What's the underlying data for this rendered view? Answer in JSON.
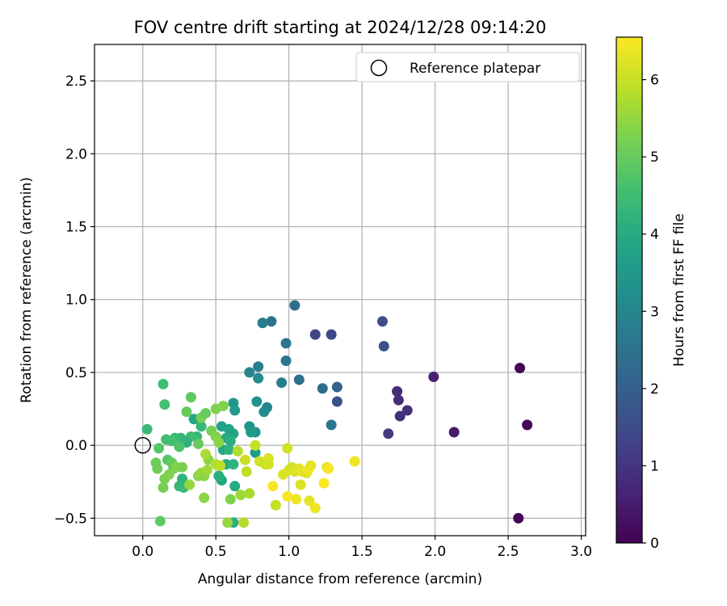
{
  "chart_data": {
    "type": "scatter",
    "title": "FOV centre drift starting at 2024/12/28 09:14:20",
    "xlabel": "Angular distance from reference (arcmin)",
    "ylabel": "Rotation from reference (arcmin)",
    "xlim": [
      -0.33,
      3.03
    ],
    "ylim": [
      -0.62,
      2.75
    ],
    "xticks": [
      0.0,
      0.5,
      1.0,
      1.5,
      2.0,
      2.5,
      3.0
    ],
    "xtick_labels": [
      "0.0",
      "0.5",
      "1.0",
      "1.5",
      "2.0",
      "2.5",
      "3.0"
    ],
    "yticks": [
      -0.5,
      0.0,
      0.5,
      1.0,
      1.5,
      2.0,
      2.5
    ],
    "ytick_labels": [
      "−0.5",
      "0.0",
      "0.5",
      "1.0",
      "1.5",
      "2.0",
      "2.5"
    ],
    "grid": true,
    "legend": {
      "position": "upper-right",
      "entries": [
        "Reference platepar"
      ]
    },
    "reference_point": {
      "label": "Reference platepar",
      "x": 0.0,
      "y": 0.0
    },
    "colorbar": {
      "label": "Hours from first FF file",
      "min": 0,
      "max": 6.55,
      "ticks": [
        0,
        1,
        2,
        3,
        4,
        5,
        6
      ],
      "tick_labels": [
        "0",
        "1",
        "2",
        "3",
        "4",
        "5",
        "6"
      ],
      "colormap": "viridis"
    },
    "points": [
      {
        "x": 2.58,
        "y": 0.53,
        "h": 0.1
      },
      {
        "x": 2.63,
        "y": 0.14,
        "h": 0.1
      },
      {
        "x": 2.57,
        "y": -0.5,
        "h": 0.1
      },
      {
        "x": 2.13,
        "y": 0.09,
        "h": 0.5
      },
      {
        "x": 1.99,
        "y": 0.47,
        "h": 0.6
      },
      {
        "x": 1.74,
        "y": 0.37,
        "h": 0.8
      },
      {
        "x": 1.75,
        "y": 0.31,
        "h": 0.8
      },
      {
        "x": 1.81,
        "y": 0.24,
        "h": 0.9
      },
      {
        "x": 1.76,
        "y": 0.2,
        "h": 0.9
      },
      {
        "x": 1.68,
        "y": 0.08,
        "h": 1.1
      },
      {
        "x": 1.64,
        "y": 0.85,
        "h": 1.5
      },
      {
        "x": 1.65,
        "y": 0.68,
        "h": 1.6
      },
      {
        "x": 1.18,
        "y": 0.76,
        "h": 1.3
      },
      {
        "x": 1.29,
        "y": 0.76,
        "h": 1.4
      },
      {
        "x": 1.33,
        "y": 0.3,
        "h": 1.6
      },
      {
        "x": 1.33,
        "y": 0.4,
        "h": 2.1
      },
      {
        "x": 1.23,
        "y": 0.39,
        "h": 2.3
      },
      {
        "x": 1.29,
        "y": 0.14,
        "h": 2.6
      },
      {
        "x": 1.04,
        "y": 0.96,
        "h": 2.3
      },
      {
        "x": 0.88,
        "y": 0.85,
        "h": 2.5
      },
      {
        "x": 0.82,
        "y": 0.84,
        "h": 2.7
      },
      {
        "x": 0.98,
        "y": 0.7,
        "h": 2.6
      },
      {
        "x": 0.98,
        "y": 0.58,
        "h": 2.6
      },
      {
        "x": 1.07,
        "y": 0.45,
        "h": 2.4
      },
      {
        "x": 0.95,
        "y": 0.43,
        "h": 2.7
      },
      {
        "x": 0.79,
        "y": 0.54,
        "h": 2.8
      },
      {
        "x": 0.73,
        "y": 0.5,
        "h": 3.0
      },
      {
        "x": 0.79,
        "y": 0.46,
        "h": 3.1
      },
      {
        "x": 0.85,
        "y": 0.26,
        "h": 2.9
      },
      {
        "x": 0.83,
        "y": 0.23,
        "h": 3.1
      },
      {
        "x": 0.78,
        "y": 0.3,
        "h": 3.3
      },
      {
        "x": 0.62,
        "y": 0.29,
        "h": 3.5
      },
      {
        "x": 0.63,
        "y": 0.24,
        "h": 3.6
      },
      {
        "x": 0.73,
        "y": 0.13,
        "h": 3.3
      },
      {
        "x": 0.77,
        "y": 0.09,
        "h": 3.4
      },
      {
        "x": 0.74,
        "y": 0.09,
        "h": 3.6
      },
      {
        "x": 0.77,
        "y": -0.05,
        "h": 3.6
      },
      {
        "x": 0.54,
        "y": 0.13,
        "h": 3.7
      },
      {
        "x": 0.59,
        "y": 0.11,
        "h": 3.9
      },
      {
        "x": 0.62,
        "y": 0.08,
        "h": 3.8
      },
      {
        "x": 0.57,
        "y": 0.05,
        "h": 4.0
      },
      {
        "x": 0.6,
        "y": 0.03,
        "h": 4.1
      },
      {
        "x": 0.55,
        "y": -0.03,
        "h": 3.9
      },
      {
        "x": 0.59,
        "y": -0.03,
        "h": 4.2
      },
      {
        "x": 0.57,
        "y": -0.13,
        "h": 4.0
      },
      {
        "x": 0.62,
        "y": -0.13,
        "h": 4.2
      },
      {
        "x": 0.63,
        "y": -0.28,
        "h": 4.0
      },
      {
        "x": 0.54,
        "y": -0.24,
        "h": 3.9
      },
      {
        "x": 0.52,
        "y": -0.21,
        "h": 4.1
      },
      {
        "x": 0.62,
        "y": -0.53,
        "h": 4.1
      },
      {
        "x": 0.35,
        "y": 0.18,
        "h": 3.9
      },
      {
        "x": 0.4,
        "y": 0.13,
        "h": 4.3
      },
      {
        "x": 0.37,
        "y": 0.06,
        "h": 4.4
      },
      {
        "x": 0.33,
        "y": 0.06,
        "h": 4.5
      },
      {
        "x": 0.3,
        "y": 0.02,
        "h": 4.2
      },
      {
        "x": 0.26,
        "y": 0.05,
        "h": 4.3
      },
      {
        "x": 0.22,
        "y": 0.05,
        "h": 4.4
      },
      {
        "x": 0.2,
        "y": 0.03,
        "h": 4.6
      },
      {
        "x": 0.25,
        "y": -0.01,
        "h": 4.7
      },
      {
        "x": 0.27,
        "y": -0.23,
        "h": 4.2
      },
      {
        "x": 0.25,
        "y": -0.28,
        "h": 4.3
      },
      {
        "x": 0.28,
        "y": -0.29,
        "h": 4.4
      },
      {
        "x": 0.16,
        "y": 0.04,
        "h": 4.5
      },
      {
        "x": 0.11,
        "y": -0.02,
        "h": 4.8
      },
      {
        "x": 0.03,
        "y": 0.11,
        "h": 4.4
      },
      {
        "x": 0.14,
        "y": 0.42,
        "h": 4.5
      },
      {
        "x": 0.15,
        "y": 0.28,
        "h": 4.6
      },
      {
        "x": 0.33,
        "y": 0.33,
        "h": 4.9
      },
      {
        "x": 0.3,
        "y": 0.23,
        "h": 5.0
      },
      {
        "x": 0.4,
        "y": 0.19,
        "h": 5.2
      },
      {
        "x": 0.43,
        "y": 0.22,
        "h": 5.0
      },
      {
        "x": 0.5,
        "y": 0.25,
        "h": 5.3
      },
      {
        "x": 0.55,
        "y": 0.27,
        "h": 5.3
      },
      {
        "x": 0.47,
        "y": 0.1,
        "h": 5.2
      },
      {
        "x": 0.5,
        "y": 0.06,
        "h": 5.3
      },
      {
        "x": 0.52,
        "y": 0.02,
        "h": 5.4
      },
      {
        "x": 0.38,
        "y": 0.01,
        "h": 5.0
      },
      {
        "x": 0.17,
        "y": -0.1,
        "h": 4.8
      },
      {
        "x": 0.2,
        "y": -0.12,
        "h": 5.0
      },
      {
        "x": 0.21,
        "y": -0.16,
        "h": 5.0
      },
      {
        "x": 0.09,
        "y": -0.12,
        "h": 5.1
      },
      {
        "x": 0.1,
        "y": -0.16,
        "h": 5.1
      },
      {
        "x": 0.15,
        "y": -0.23,
        "h": 5.2
      },
      {
        "x": 0.14,
        "y": -0.29,
        "h": 5.2
      },
      {
        "x": 0.18,
        "y": -0.2,
        "h": 5.3
      },
      {
        "x": 0.23,
        "y": -0.15,
        "h": 5.3
      },
      {
        "x": 0.27,
        "y": -0.15,
        "h": 5.2
      },
      {
        "x": 0.32,
        "y": -0.27,
        "h": 5.5
      },
      {
        "x": 0.38,
        "y": -0.21,
        "h": 5.4
      },
      {
        "x": 0.4,
        "y": -0.19,
        "h": 5.5
      },
      {
        "x": 0.42,
        "y": -0.21,
        "h": 5.4
      },
      {
        "x": 0.44,
        "y": -0.17,
        "h": 5.6
      },
      {
        "x": 0.45,
        "y": -0.1,
        "h": 5.4
      },
      {
        "x": 0.43,
        "y": -0.06,
        "h": 5.7
      },
      {
        "x": 0.5,
        "y": -0.13,
        "h": 5.8
      },
      {
        "x": 0.53,
        "y": -0.14,
        "h": 5.9
      },
      {
        "x": 0.42,
        "y": -0.36,
        "h": 5.4
      },
      {
        "x": 0.12,
        "y": -0.52,
        "h": 4.9
      },
      {
        "x": 0.6,
        "y": -0.37,
        "h": 5.3
      },
      {
        "x": 0.58,
        "y": -0.53,
        "h": 5.5
      },
      {
        "x": 0.67,
        "y": -0.34,
        "h": 5.6
      },
      {
        "x": 0.69,
        "y": -0.53,
        "h": 5.8
      },
      {
        "x": 0.73,
        "y": -0.33,
        "h": 5.7
      },
      {
        "x": 0.65,
        "y": -0.04,
        "h": 5.8
      },
      {
        "x": 0.7,
        "y": -0.1,
        "h": 6.0
      },
      {
        "x": 0.71,
        "y": -0.18,
        "h": 5.9
      },
      {
        "x": 0.77,
        "y": 0.0,
        "h": 6.0
      },
      {
        "x": 0.8,
        "y": -0.11,
        "h": 6.1
      },
      {
        "x": 0.84,
        "y": -0.13,
        "h": 6.0
      },
      {
        "x": 0.86,
        "y": -0.09,
        "h": 6.2
      },
      {
        "x": 0.86,
        "y": -0.13,
        "h": 6.1
      },
      {
        "x": 0.91,
        "y": -0.41,
        "h": 6.0
      },
      {
        "x": 0.89,
        "y": -0.28,
        "h": 6.5
      },
      {
        "x": 0.96,
        "y": -0.2,
        "h": 6.2
      },
      {
        "x": 0.99,
        "y": -0.02,
        "h": 6.1
      },
      {
        "x": 1.0,
        "y": -0.17,
        "h": 6.2
      },
      {
        "x": 1.02,
        "y": -0.15,
        "h": 6.1
      },
      {
        "x": 1.04,
        "y": -0.18,
        "h": 6.2
      },
      {
        "x": 1.07,
        "y": -0.16,
        "h": 6.3
      },
      {
        "x": 1.09,
        "y": -0.18,
        "h": 6.3
      },
      {
        "x": 1.12,
        "y": -0.19,
        "h": 6.2
      },
      {
        "x": 1.13,
        "y": -0.17,
        "h": 6.4
      },
      {
        "x": 1.15,
        "y": -0.14,
        "h": 6.3
      },
      {
        "x": 1.08,
        "y": -0.27,
        "h": 6.2
      },
      {
        "x": 0.99,
        "y": -0.35,
        "h": 6.5
      },
      {
        "x": 1.05,
        "y": -0.37,
        "h": 6.4
      },
      {
        "x": 1.14,
        "y": -0.38,
        "h": 6.3
      },
      {
        "x": 1.18,
        "y": -0.43,
        "h": 6.4
      },
      {
        "x": 1.24,
        "y": -0.26,
        "h": 6.6
      },
      {
        "x": 1.26,
        "y": -0.15,
        "h": 6.3
      },
      {
        "x": 1.45,
        "y": -0.11,
        "h": 6.4
      },
      {
        "x": 1.27,
        "y": -0.16,
        "h": 6.5
      }
    ]
  }
}
